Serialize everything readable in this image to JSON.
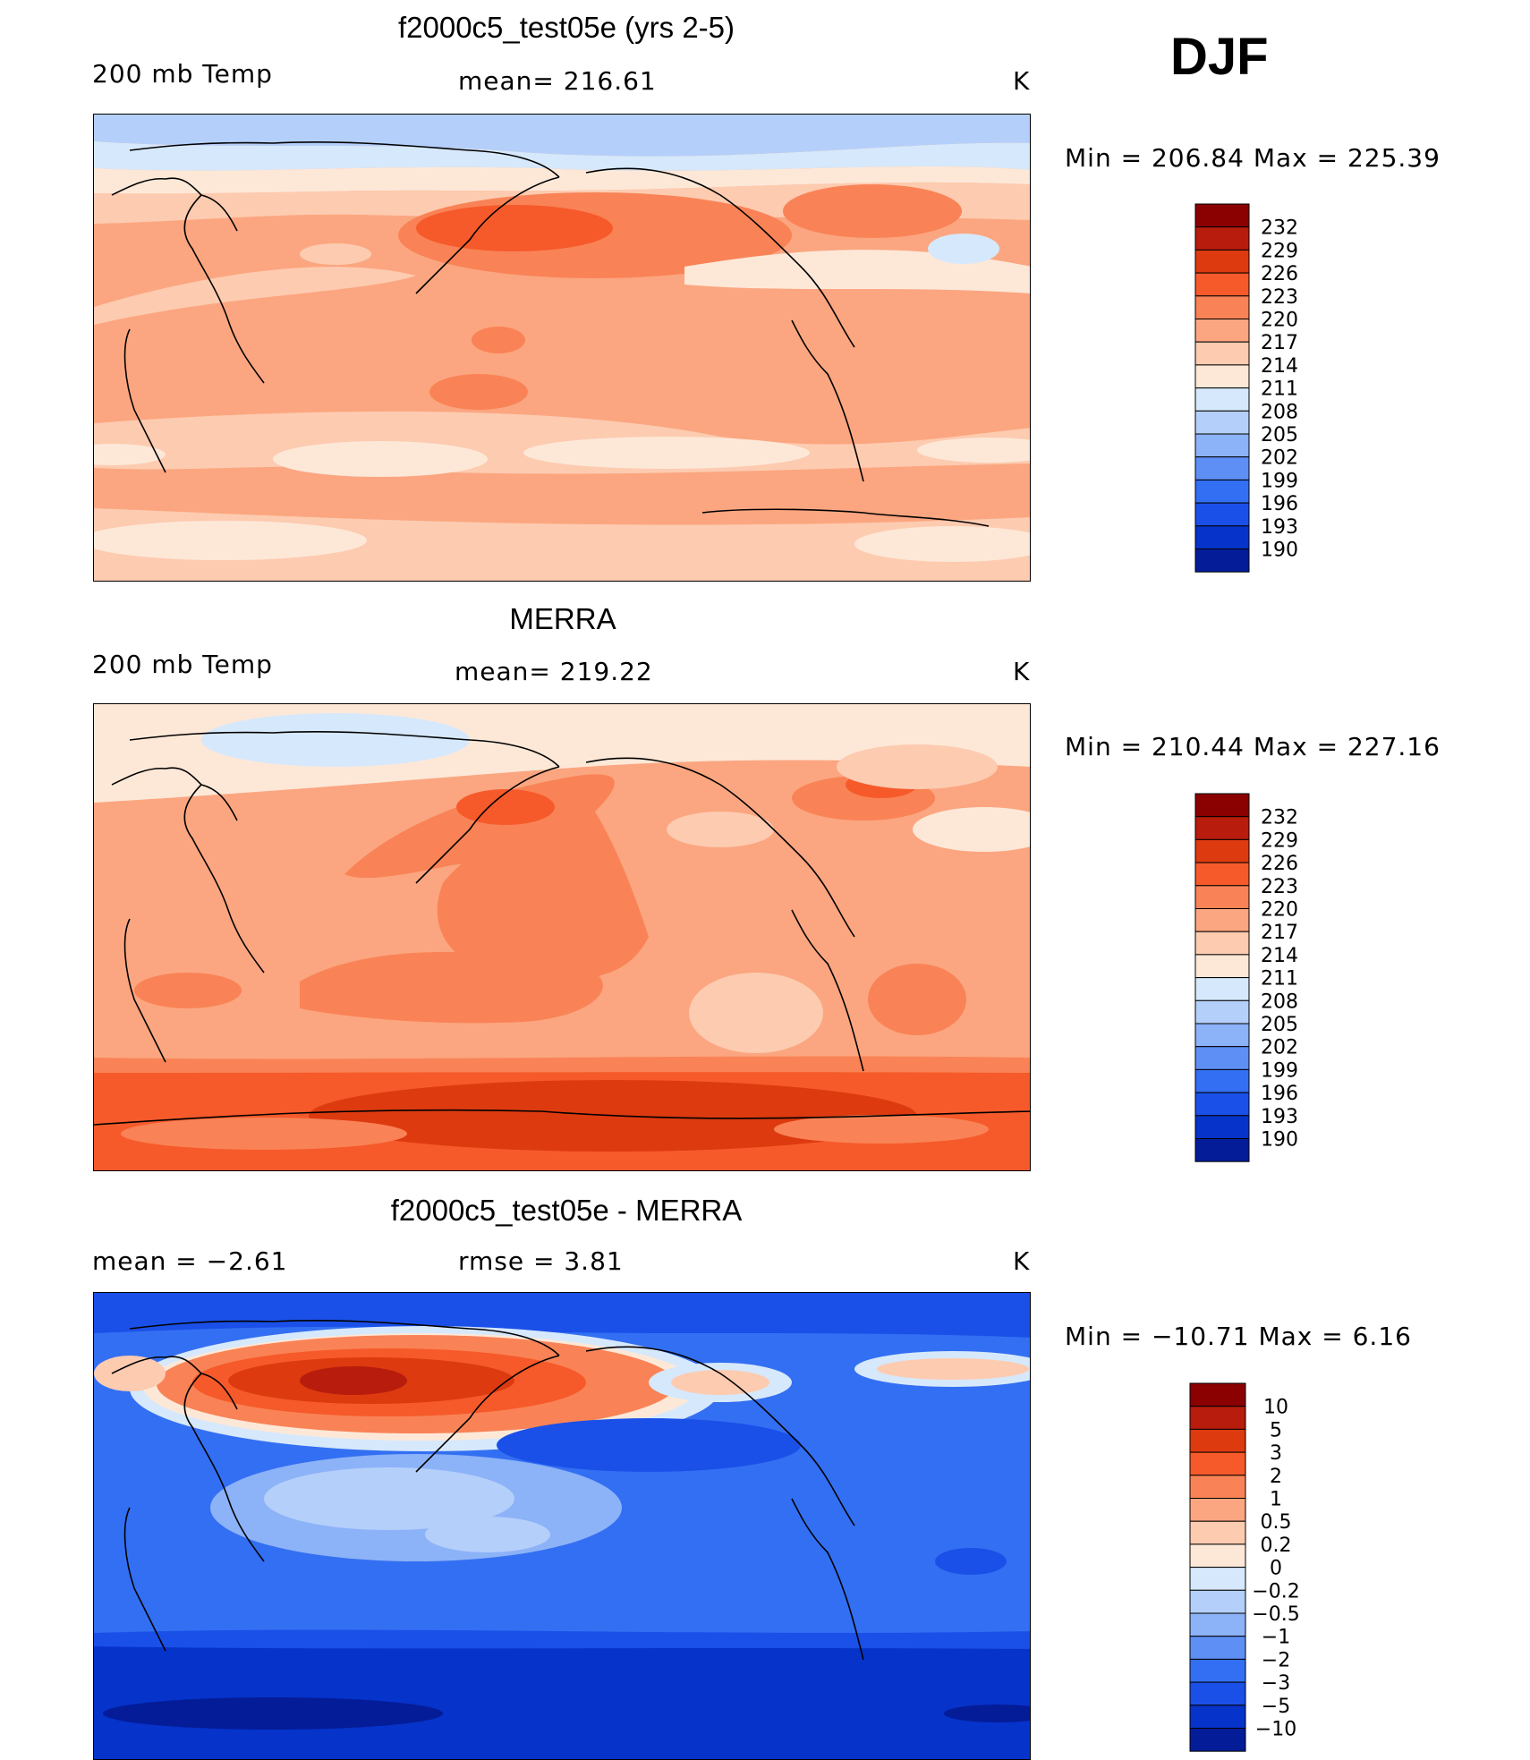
{
  "season": "DJF",
  "units": "K",
  "panels": [
    {
      "title": "f2000c5_test05e (yrs 2-5)",
      "variable": "200 mb Temp",
      "stat": "mean=  216.61",
      "minmax": "Min  =  206.84  Max  =  225.39",
      "colorbar_labels": [
        "232",
        "229",
        "226",
        "223",
        "220",
        "217",
        "214",
        "211",
        "208",
        "205",
        "202",
        "199",
        "196",
        "193",
        "190"
      ]
    },
    {
      "title": "MERRA",
      "variable": "200 mb Temp",
      "stat": "mean=  219.22",
      "minmax": "Min  =  210.44  Max  =  227.16",
      "colorbar_labels": [
        "232",
        "229",
        "226",
        "223",
        "220",
        "217",
        "214",
        "211",
        "208",
        "205",
        "202",
        "199",
        "196",
        "193",
        "190"
      ]
    },
    {
      "title": "f2000c5_test05e - MERRA",
      "mean": "mean  =    −2.61",
      "rmse": "rmse  =     3.81",
      "minmax": "Min  =  −10.71  Max  =      6.16",
      "colorbar_labels": [
        "10",
        "5",
        "3",
        "2",
        "1",
        "0.5",
        "0.2",
        "0",
        "−0.2",
        "−0.5",
        "−1",
        "−2",
        "−3",
        "−5",
        "−10"
      ]
    }
  ],
  "colors": {
    "scale": [
      "#8b0000",
      "#b71c0c",
      "#dd3a10",
      "#f65a2a",
      "#f98356",
      "#fba680",
      "#fdcbb0",
      "#fde8d8",
      "#d6e8fb",
      "#b4cffa",
      "#8cb2f8",
      "#5e8ff5",
      "#336ff2",
      "#1a50e8",
      "#0633c9",
      "#041c98"
    ]
  }
}
